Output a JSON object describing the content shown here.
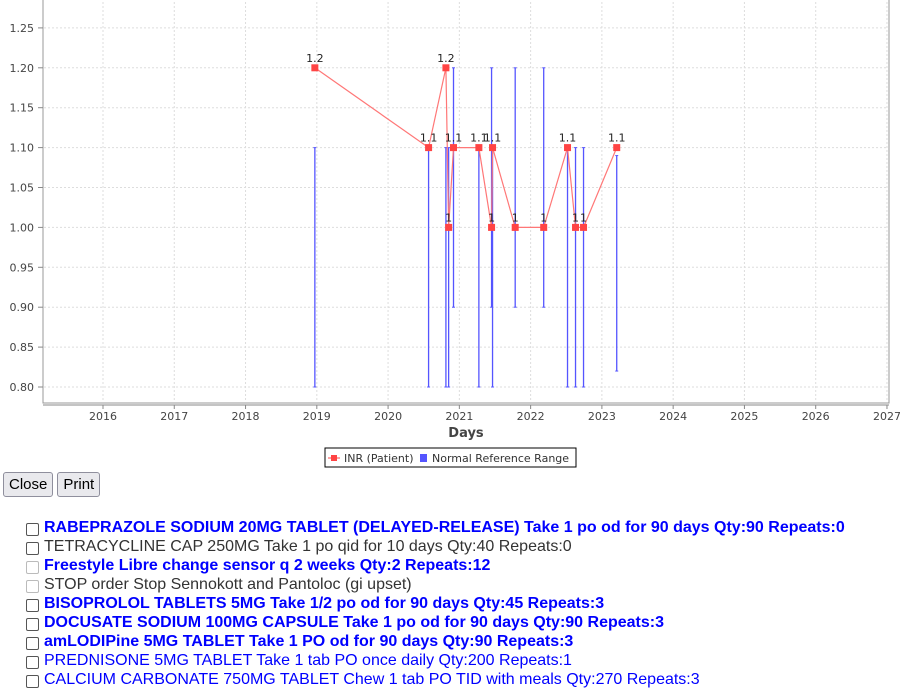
{
  "chart_data": {
    "type": "line",
    "xlabel": "Days",
    "ylabel": "",
    "xlim": [
      2015.2,
      2027
    ],
    "ylim": [
      0.78,
      1.28
    ],
    "x_ticks": [
      "2016",
      "2017",
      "2018",
      "2019",
      "2020",
      "2021",
      "2022",
      "2023",
      "2024",
      "2025",
      "2026",
      "2027"
    ],
    "y_ticks": [
      "0.80",
      "0.85",
      "0.90",
      "0.95",
      "1.00",
      "1.05",
      "1.10",
      "1.15",
      "1.20",
      "1.25"
    ],
    "grid": true,
    "legend_position": "bottom",
    "series": [
      {
        "name": "INR (Patient)",
        "color": "#ff4444",
        "points": [
          {
            "date": "2018-12-22",
            "value": 1.2,
            "label": "1.2"
          },
          {
            "date": "2020-07-27",
            "value": 1.1,
            "label": "1.1"
          },
          {
            "date": "2020-10-24",
            "value": 1.2,
            "label": "1.2"
          },
          {
            "date": "2020-11-07",
            "value": 1.0,
            "label": "1"
          },
          {
            "date": "2020-12-02",
            "value": 1.1,
            "label": "1.1"
          },
          {
            "date": "2021-04-11",
            "value": 1.1,
            "label": "1.1"
          },
          {
            "date": "2021-06-15",
            "value": 1.0,
            "label": "1"
          },
          {
            "date": "2021-06-20",
            "value": 1.1,
            "label": "1.1"
          },
          {
            "date": "2021-10-14",
            "value": 1.0,
            "label": "1"
          },
          {
            "date": "2022-03-09",
            "value": 1.0,
            "label": "1"
          },
          {
            "date": "2022-07-09",
            "value": 1.1,
            "label": "1.1"
          },
          {
            "date": "2022-08-19",
            "value": 1.0,
            "label": "1"
          },
          {
            "date": "2022-09-29",
            "value": 1.0,
            "label": "1"
          },
          {
            "date": "2023-03-18",
            "value": 1.1,
            "label": "1.1"
          }
        ]
      },
      {
        "name": "Normal Reference Range",
        "color": "#5555ff",
        "ranges": [
          {
            "date": "2018-12-22",
            "low": 0.8,
            "high": 1.1
          },
          {
            "date": "2020-07-27",
            "low": 0.8,
            "high": 1.1
          },
          {
            "date": "2020-10-24",
            "low": 0.8,
            "high": 1.1
          },
          {
            "date": "2020-11-07",
            "low": 0.8,
            "high": 1.1
          },
          {
            "date": "2020-12-02",
            "low": 0.9,
            "high": 1.2
          },
          {
            "date": "2021-04-11",
            "low": 0.8,
            "high": 1.1
          },
          {
            "date": "2021-06-15",
            "low": 0.9,
            "high": 1.2
          },
          {
            "date": "2021-06-20",
            "low": 0.8,
            "high": 1.1
          },
          {
            "date": "2021-10-14",
            "low": 0.9,
            "high": 1.2
          },
          {
            "date": "2022-03-09",
            "low": 0.9,
            "high": 1.2
          },
          {
            "date": "2022-07-09",
            "low": 0.8,
            "high": 1.1
          },
          {
            "date": "2022-08-19",
            "low": 0.8,
            "high": 1.1
          },
          {
            "date": "2022-09-29",
            "low": 0.8,
            "high": 1.1
          },
          {
            "date": "2023-03-18",
            "low": 0.82,
            "high": 1.09
          }
        ]
      }
    ]
  },
  "buttons": {
    "close": "Close",
    "print": "Print"
  },
  "medications": [
    {
      "text": "RABEPRAZOLE SODIUM 20MG TABLET (DELAYED-RELEASE) Take 1 po od for 90 days Qty:90 Repeats:0",
      "style": "bold",
      "checkbox": "normal"
    },
    {
      "text": "TETRACYCLINE CAP 250MG Take 1 po qid for 10 days Qty:40 Repeats:0",
      "style": "gray",
      "checkbox": "normal"
    },
    {
      "text": "Freestyle Libre change sensor q 2 weeks Qty:2 Repeats:12",
      "style": "bold",
      "checkbox": "light"
    },
    {
      "text": "STOP order Stop Sennokott and Pantoloc (gi upset)",
      "style": "gray",
      "checkbox": "light"
    },
    {
      "text": "BISOPROLOL TABLETS 5MG Take 1/2 po od for 90 days Qty:45 Repeats:3",
      "style": "bold",
      "checkbox": "normal"
    },
    {
      "text": "DOCUSATE SODIUM 100MG CAPSULE Take 1 po od for 90 days Qty:90 Repeats:3",
      "style": "bold",
      "checkbox": "normal"
    },
    {
      "text": "amLODIPine 5MG TABLET Take 1 PO od for 90 days Qty:90 Repeats:3",
      "style": "bold",
      "checkbox": "normal"
    },
    {
      "text": "PREDNISONE 5MG TABLET Take 1 tab PO once daily Qty:200 Repeats:1",
      "style": "blue",
      "checkbox": "normal"
    },
    {
      "text": "CALCIUM CARBONATE 750MG TABLET Chew 1 tab PO TID with meals Qty:270 Repeats:3",
      "style": "blue",
      "checkbox": "normal"
    }
  ]
}
